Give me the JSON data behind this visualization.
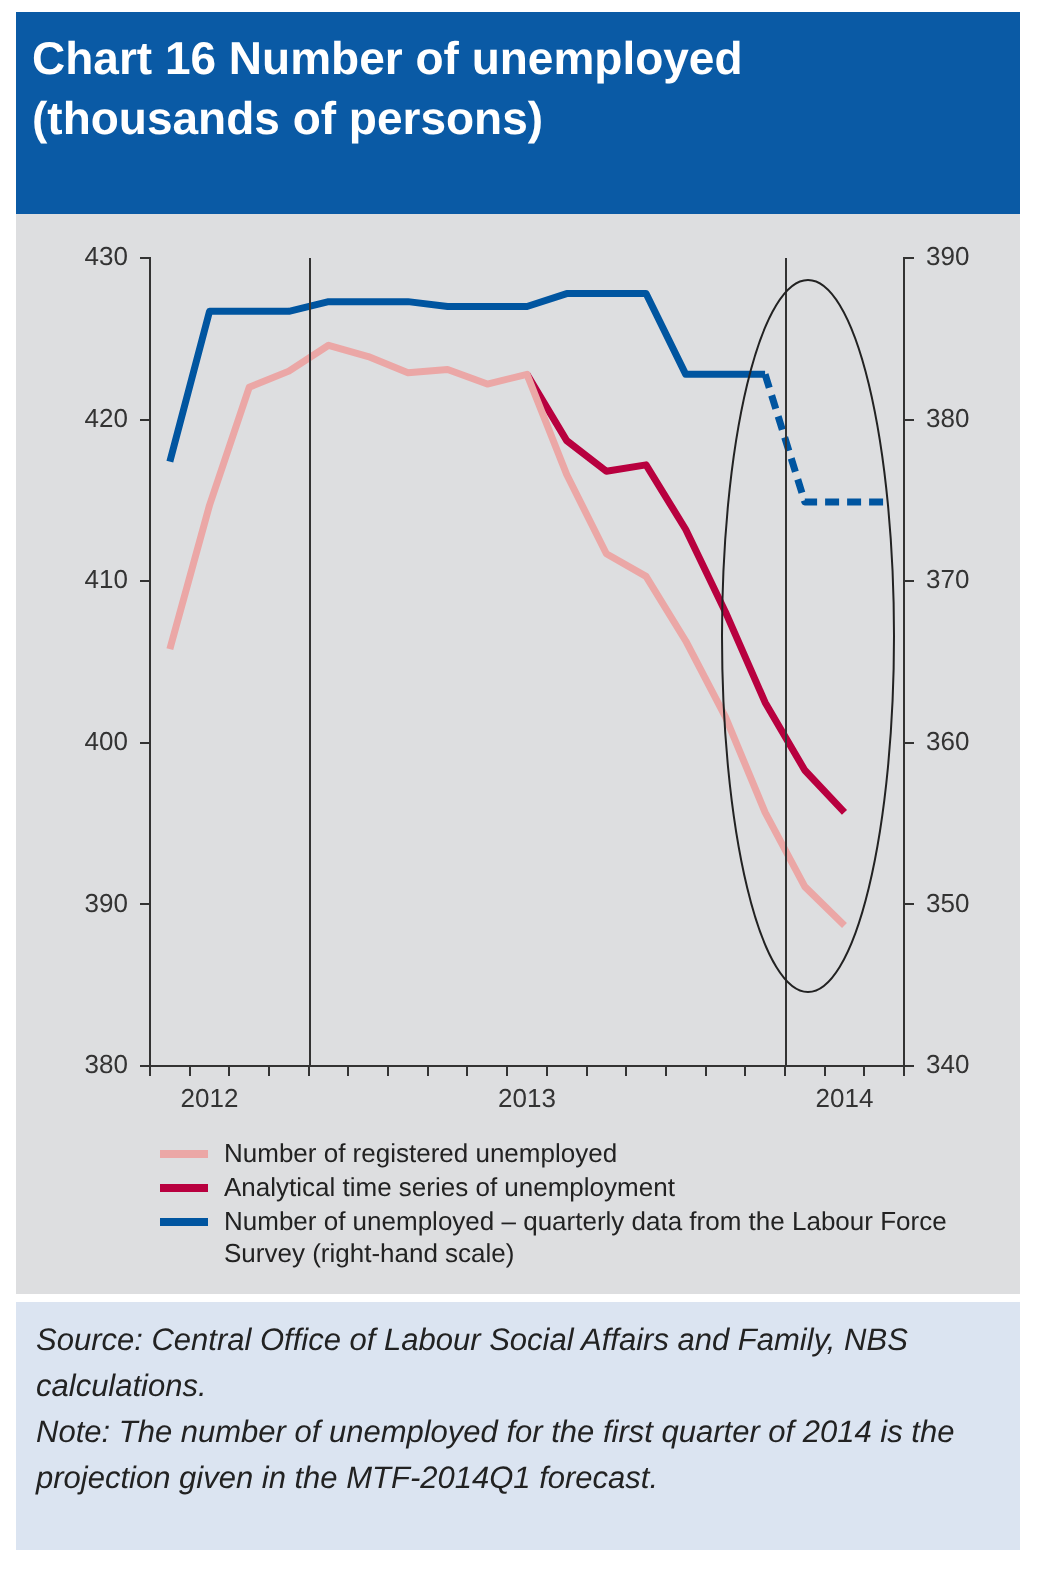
{
  "chart_data": {
    "type": "line",
    "title": "Chart 16 Number of unemployed (thousands of persons)",
    "categories": [
      null,
      "2012",
      null,
      null,
      null,
      null,
      null,
      null,
      null,
      "2013",
      null,
      null,
      null,
      null,
      null,
      null,
      null,
      "2014",
      null
    ],
    "ylim": [
      380,
      430
    ],
    "yticks": [
      380,
      390,
      400,
      410,
      420,
      430
    ],
    "y2lim": [
      340,
      390
    ],
    "y2ticks": [
      340,
      350,
      360,
      370,
      380,
      390
    ],
    "grid": false,
    "legend": "bottom",
    "marker": "none",
    "series": [
      {
        "name": "Number of registered unemployed",
        "color": "#eba7a6",
        "line_style": "solid",
        "values": [
          405.8,
          414.7,
          422.0,
          423.0,
          424.6,
          423.9,
          422.9,
          423.1,
          422.2,
          422.8,
          416.6,
          411.7,
          410.3,
          406.3,
          401.6,
          395.7,
          391.1,
          388.7,
          null
        ]
      },
      {
        "name": "Analytical time series of unemployment",
        "color": "#b8003f",
        "line_style": "solid",
        "values": [
          null,
          null,
          null,
          null,
          null,
          null,
          null,
          null,
          null,
          422.8,
          418.7,
          416.8,
          417.2,
          413.2,
          408.1,
          402.5,
          398.3,
          395.7,
          null
        ]
      },
      {
        "name": "Number of unemployed – quarterly data from the Labour Force Survey (right-hand scale)",
        "color": "#0055a0",
        "line_style": "solid",
        "axis": "y2",
        "values": [
          377.4,
          386.7,
          386.7,
          386.7,
          387.3,
          387.3,
          387.3,
          387.0,
          387.0,
          387.0,
          387.8,
          387.8,
          387.8,
          382.8,
          382.8,
          382.8,
          null,
          null,
          null
        ]
      },
      {
        "color": "#0055a0",
        "line_style": "dashed",
        "axis": "y2",
        "values": [
          null,
          null,
          null,
          null,
          null,
          null,
          null,
          null,
          null,
          null,
          null,
          null,
          null,
          null,
          null,
          382.8,
          374.9,
          374.9,
          374.9
        ]
      }
    ],
    "annotations": [
      "Source: Central Office of Labour Social Affairs and Family, NBS calculations.",
      "Note: The number of unemployed for the first quarter of 2014 is the projection given in the MTF-2014Q1 forecast."
    ]
  }
}
